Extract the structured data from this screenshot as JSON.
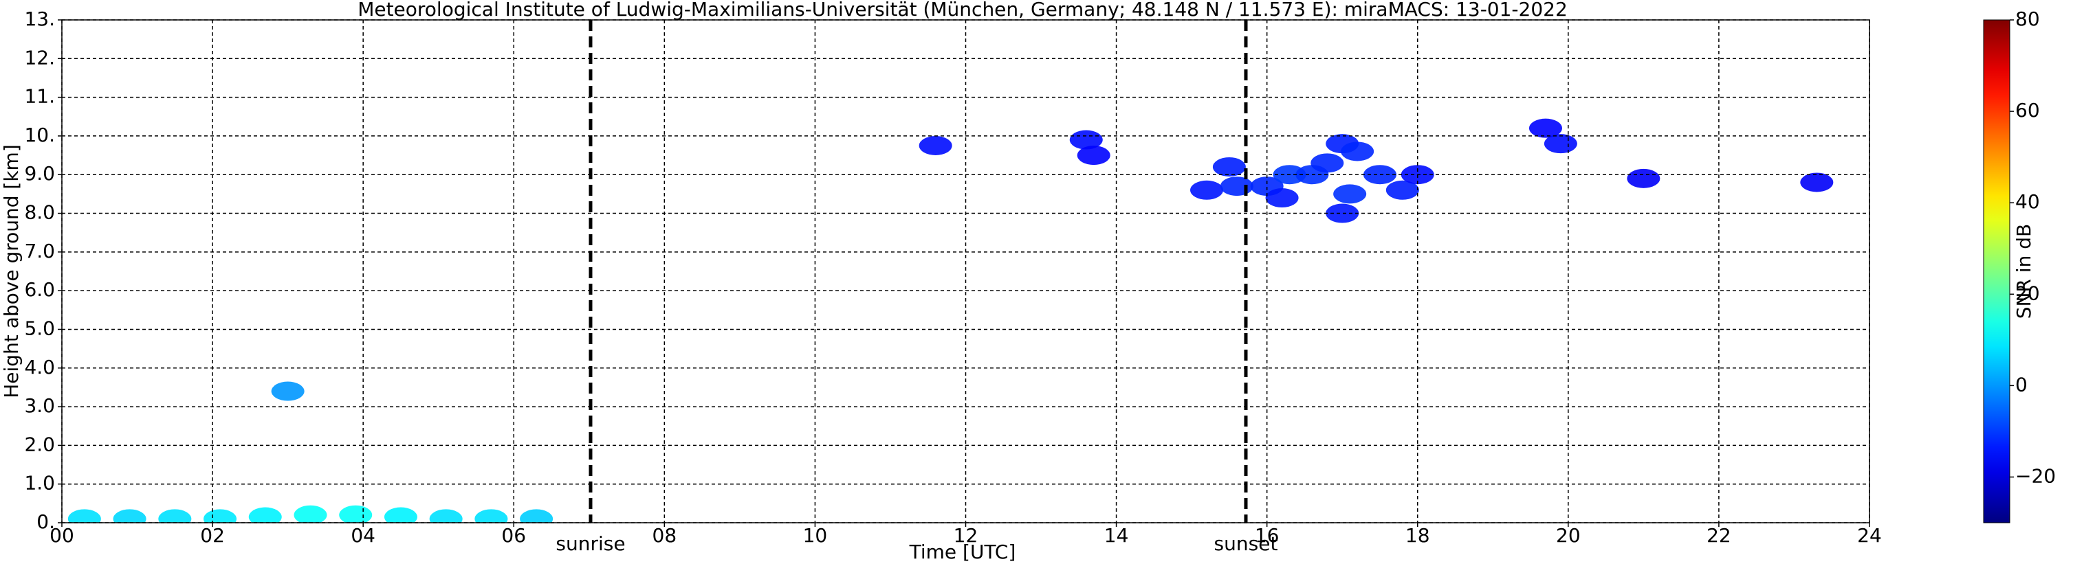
{
  "chart_data": {
    "type": "heatmap",
    "title": "Meteorological Institute of Ludwig-Maximilians-Universität (München, Germany; 48.148 N / 11.573 E):    miraMACS: 13-01-2022",
    "x_label": "Time [UTC]",
    "y_label": "Height above ground [km]",
    "colorbar_label": "SNR in dB",
    "colormap": "jet",
    "grid": true,
    "xlim": [
      0,
      24
    ],
    "xticks": [
      {
        "value": 0,
        "label": "00"
      },
      {
        "value": 2,
        "label": "02"
      },
      {
        "value": 4,
        "label": "04"
      },
      {
        "value": 6,
        "label": "06"
      },
      {
        "value": 8,
        "label": "08"
      },
      10,
      12,
      14,
      16,
      18,
      20,
      22,
      24
    ],
    "ylim": [
      0,
      13
    ],
    "yticks": [
      {
        "value": 0,
        "label": "0."
      },
      {
        "value": 1,
        "label": "1.0"
      },
      {
        "value": 2,
        "label": "2.0"
      },
      {
        "value": 3,
        "label": "3.0"
      },
      {
        "value": 4,
        "label": "4.0"
      },
      {
        "value": 5,
        "label": "5.0"
      },
      {
        "value": 6,
        "label": "6.0"
      },
      {
        "value": 7,
        "label": "7.0"
      },
      {
        "value": 8,
        "label": "8.0"
      },
      {
        "value": 9,
        "label": "9.0"
      },
      {
        "value": 10,
        "label": "10."
      },
      {
        "value": 11,
        "label": "11."
      },
      {
        "value": 12,
        "label": "12."
      },
      {
        "value": 13,
        "label": "13."
      }
    ],
    "clim": [
      -30,
      80
    ],
    "colorbar_ticks": [
      {
        "value": -20,
        "label": "−20"
      },
      0,
      20,
      40,
      60,
      80
    ],
    "annotations": [
      {
        "text": "sunrise",
        "x": 7.02
      },
      {
        "text": "sunset",
        "x": 15.72
      }
    ],
    "x": [
      0.3,
      0.9,
      1.5,
      2.1,
      2.7,
      3.3,
      3.9,
      4.5,
      5.1,
      5.7,
      6.3,
      3.0,
      11.6,
      13.6,
      13.7,
      15.2,
      15.5,
      15.6,
      16.0,
      16.2,
      16.3,
      16.6,
      16.8,
      17.0,
      17.2,
      17.1,
      17.0,
      17.5,
      17.8,
      18.0,
      19.7,
      19.9,
      21.0,
      23.3
    ],
    "y": [
      0.1,
      0.1,
      0.1,
      0.1,
      0.15,
      0.2,
      0.2,
      0.15,
      0.1,
      0.1,
      0.1,
      3.4,
      9.75,
      9.9,
      9.5,
      8.6,
      9.2,
      8.7,
      8.7,
      8.4,
      9.0,
      9.0,
      9.3,
      9.8,
      9.6,
      8.5,
      8.0,
      9.0,
      8.6,
      9.0,
      10.2,
      9.8,
      8.9,
      8.8
    ],
    "values": [
      8,
      7,
      8,
      9,
      10,
      12,
      12,
      10,
      8,
      8,
      6,
      0,
      -15,
      -15,
      -16,
      -14,
      -13,
      -12,
      -12,
      -14,
      -10,
      -11,
      -12,
      -13,
      -12,
      -11,
      -14,
      -12,
      -13,
      -15,
      -16,
      -15,
      -17,
      -17
    ]
  }
}
